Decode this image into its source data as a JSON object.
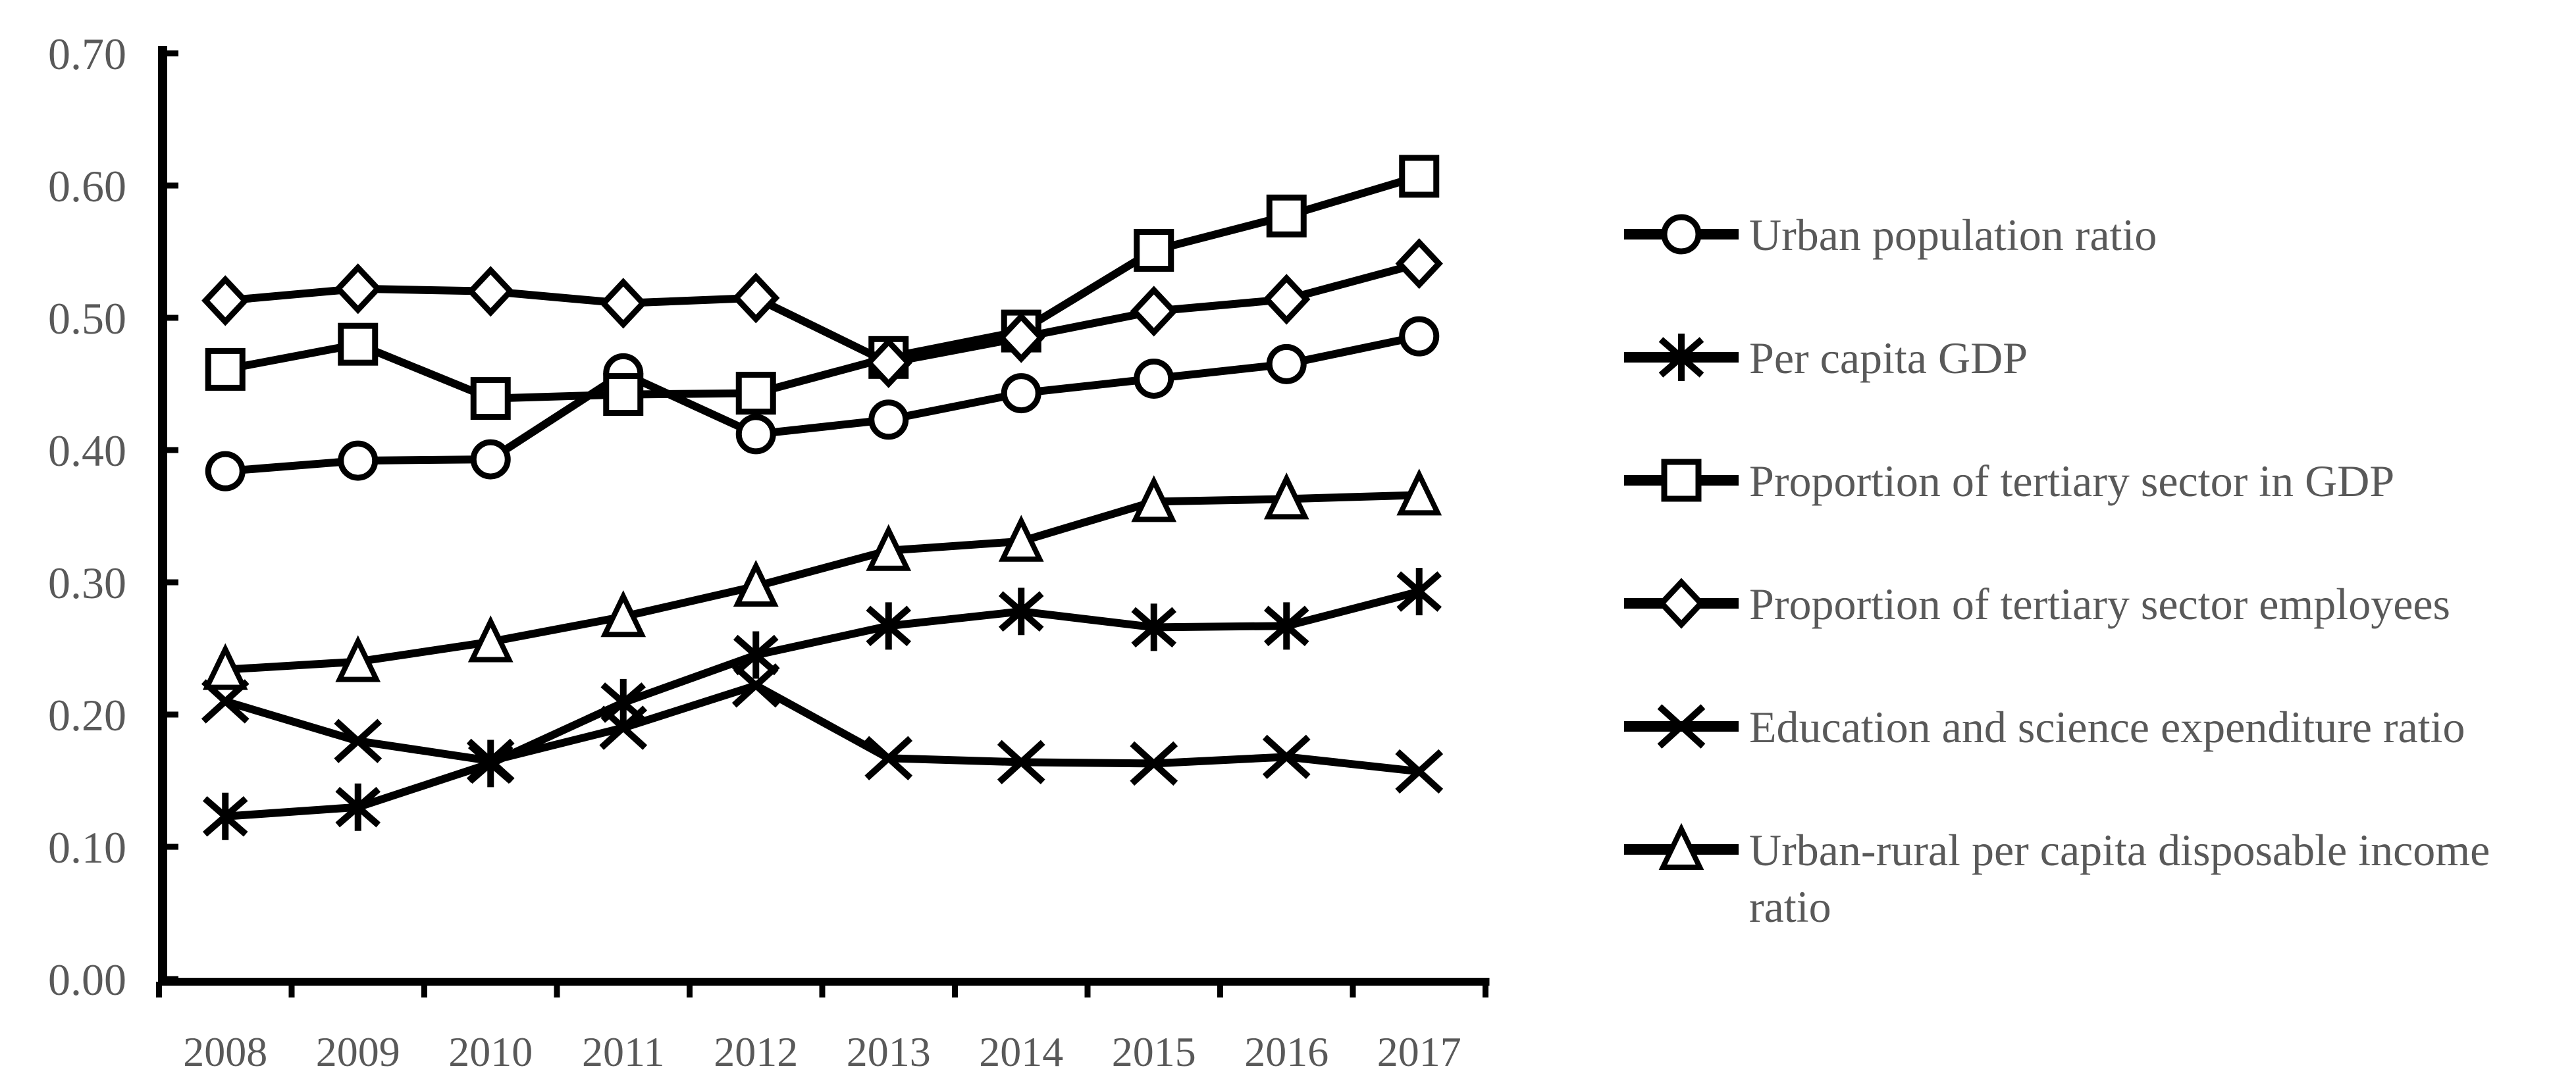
{
  "chart_data": {
    "type": "line",
    "title": "",
    "xlabel": "",
    "ylabel": "",
    "categories": [
      "2008",
      "2009",
      "2010",
      "2011",
      "2012",
      "2013",
      "2014",
      "2015",
      "2016",
      "2017"
    ],
    "series": [
      {
        "name": "Urban population ratio",
        "marker": "circle",
        "values": [
          0.384,
          0.392,
          0.393,
          0.458,
          0.412,
          0.423,
          0.443,
          0.454,
          0.465,
          0.486
        ]
      },
      {
        "name": "Per capita GDP",
        "marker": "asterisk",
        "values": [
          0.123,
          0.13,
          0.163,
          0.209,
          0.245,
          0.267,
          0.278,
          0.266,
          0.267,
          0.293
        ]
      },
      {
        "name": "Proportion of tertiary sector in GDP",
        "marker": "square",
        "values": [
          0.461,
          0.48,
          0.439,
          0.442,
          0.443,
          0.47,
          0.49,
          0.551,
          0.577,
          0.607
        ]
      },
      {
        "name": "Proportion of tertiary sector employees",
        "marker": "diamond",
        "values": [
          0.513,
          0.522,
          0.52,
          0.511,
          0.515,
          0.466,
          0.485,
          0.505,
          0.514,
          0.541
        ]
      },
      {
        "name": "Education and science expenditure ratio",
        "marker": "x",
        "values": [
          0.21,
          0.18,
          0.165,
          0.19,
          0.222,
          0.167,
          0.164,
          0.163,
          0.168,
          0.157
        ]
      },
      {
        "name": "Urban-rural per capita disposable income ratio",
        "marker": "triangle",
        "values": [
          0.234,
          0.24,
          0.255,
          0.274,
          0.297,
          0.324,
          0.331,
          0.361,
          0.363,
          0.366
        ]
      }
    ],
    "ylim": [
      0.0,
      0.7
    ],
    "ytick_step": 0.1,
    "ytick_labels": [
      "0.00",
      "0.10",
      "0.20",
      "0.30",
      "0.40",
      "0.50",
      "0.60",
      "0.70"
    ],
    "grid": false,
    "legend_position": "right",
    "line_color": "#000000",
    "marker_fill": "#ffffff",
    "axis_color": "#000000",
    "axis_text_color": "#595959"
  }
}
